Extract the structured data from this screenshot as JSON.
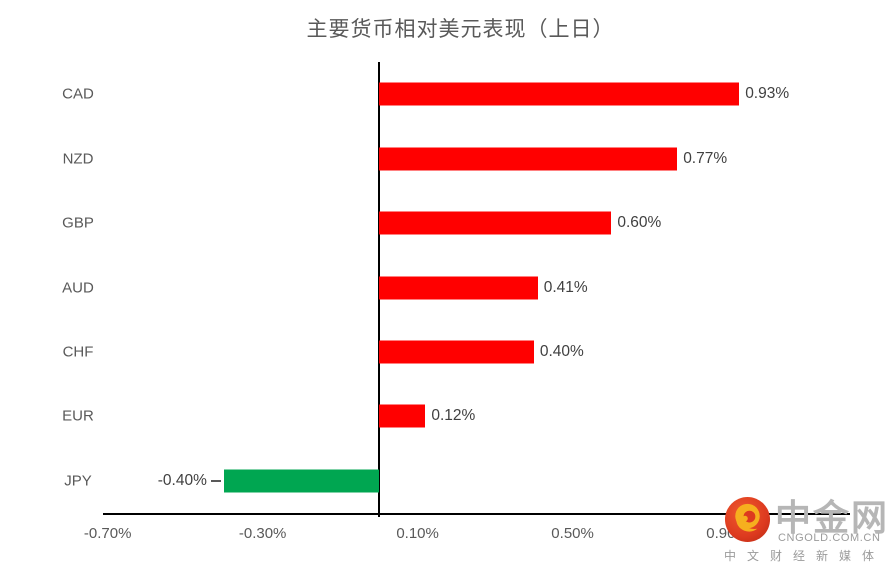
{
  "title": "主要货币相对美元表现（上日）",
  "watermark": {
    "name": "中金网",
    "domain": "CNGOLD.COM.CN",
    "tagline": "中文财经新媒体"
  },
  "chart_data": {
    "type": "bar",
    "orientation": "horizontal",
    "title": "主要货币相对美元表现（上日）",
    "categories": [
      "CAD",
      "NZD",
      "GBP",
      "AUD",
      "CHF",
      "EUR",
      "JPY"
    ],
    "values": [
      0.93,
      0.77,
      0.6,
      0.41,
      0.4,
      0.12,
      -0.4
    ],
    "value_labels": [
      "0.93%",
      "0.77%",
      "0.60%",
      "0.41%",
      "0.40%",
      "0.12%",
      "-0.40%"
    ],
    "xlim": [
      -0.712,
      1.216
    ],
    "xticks": [
      -0.7,
      -0.3,
      0.1,
      0.5,
      0.9
    ],
    "xtick_labels": [
      "-0.70%",
      "-0.30%",
      "0.10%",
      "0.50%",
      "0.90%"
    ],
    "positive_color": "#FF0000",
    "negative_color": "#00A651",
    "axis_color": "#000000",
    "grid": false,
    "legend": "none"
  }
}
